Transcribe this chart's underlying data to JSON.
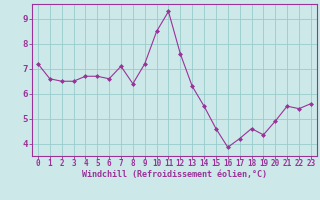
{
  "x": [
    0,
    1,
    2,
    3,
    4,
    5,
    6,
    7,
    8,
    9,
    10,
    11,
    12,
    13,
    14,
    15,
    16,
    17,
    18,
    19,
    20,
    21,
    22,
    23
  ],
  "y": [
    7.2,
    6.6,
    6.5,
    6.5,
    6.7,
    6.7,
    6.6,
    7.1,
    6.4,
    7.2,
    8.5,
    9.3,
    7.6,
    6.3,
    5.5,
    4.6,
    3.85,
    4.2,
    4.6,
    4.35,
    4.9,
    5.5,
    5.4,
    5.6
  ],
  "line_color": "#993399",
  "marker": "D",
  "marker_size": 2.0,
  "bg_color": "#cce8e8",
  "grid_color": "#99cccc",
  "xlabel": "Windchill (Refroidissement éolien,°C)",
  "xlabel_color": "#993399",
  "tick_color": "#993399",
  "spine_color": "#993399",
  "ylim": [
    3.5,
    9.6
  ],
  "xlim": [
    -0.5,
    23.5
  ],
  "yticks": [
    4,
    5,
    6,
    7,
    8,
    9
  ],
  "xticks": [
    0,
    1,
    2,
    3,
    4,
    5,
    6,
    7,
    8,
    9,
    10,
    11,
    12,
    13,
    14,
    15,
    16,
    17,
    18,
    19,
    20,
    21,
    22,
    23
  ],
  "tick_fontsize": 5.5,
  "xlabel_fontsize": 6.0,
  "ylabel_fontsize": 6.5
}
